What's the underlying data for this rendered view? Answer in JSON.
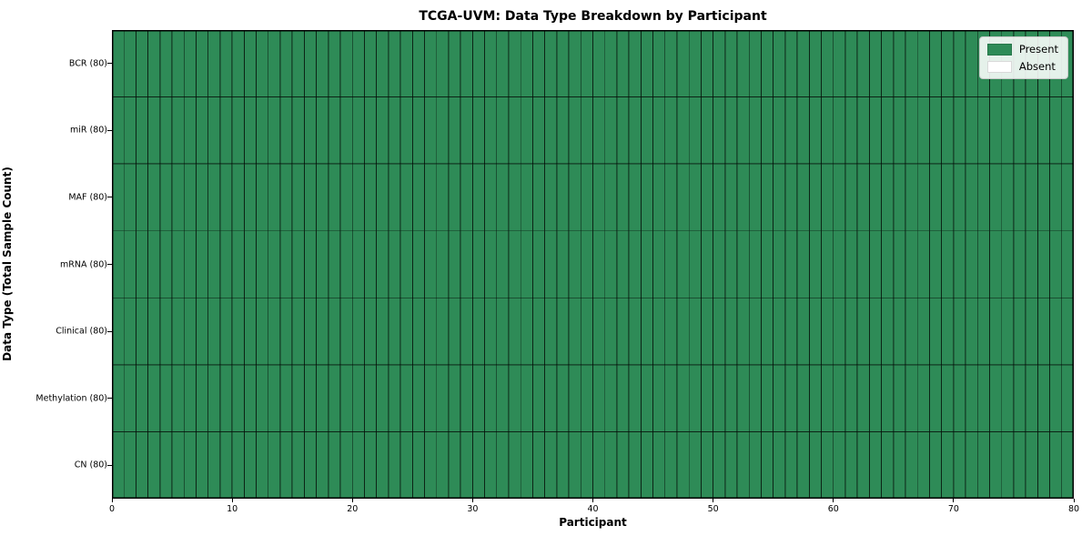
{
  "chart_data": {
    "type": "heatmap",
    "title": "TCGA-UVM: Data Type Breakdown by Participant",
    "xlabel": "Participant",
    "ylabel": "Data Type (Total Sample Count)",
    "xlim": [
      0,
      80
    ],
    "x_ticks": [
      0,
      10,
      20,
      30,
      40,
      50,
      60,
      70,
      80
    ],
    "n_participants": 80,
    "grid": "cell borders visible",
    "legend_position": "upper right",
    "legend": [
      {
        "name": "present",
        "label": "Present",
        "color": "#2e8b57"
      },
      {
        "name": "absent",
        "label": "Absent",
        "color": "#ffffff"
      }
    ],
    "colors": {
      "present": "#2e8b57",
      "absent": "#ffffff",
      "grid_line": "rgba(0,0,0,0.62)",
      "frame": "#000000",
      "background": "#ffffff"
    },
    "rows": [
      {
        "label": "BCR (80)",
        "data_type": "BCR",
        "total_samples": 80,
        "present_count": 80,
        "absent_count": 0,
        "values": "11111111111111111111111111111111111111111111111111111111111111111111111111111111"
      },
      {
        "label": "miR (80)",
        "data_type": "miR",
        "total_samples": 80,
        "present_count": 80,
        "absent_count": 0,
        "values": "11111111111111111111111111111111111111111111111111111111111111111111111111111111"
      },
      {
        "label": "MAF (80)",
        "data_type": "MAF",
        "total_samples": 80,
        "present_count": 80,
        "absent_count": 0,
        "values": "11111111111111111111111111111111111111111111111111111111111111111111111111111111"
      },
      {
        "label": "mRNA (80)",
        "data_type": "mRNA",
        "total_samples": 80,
        "present_count": 80,
        "absent_count": 0,
        "values": "11111111111111111111111111111111111111111111111111111111111111111111111111111111"
      },
      {
        "label": "Clinical (80)",
        "data_type": "Clinical",
        "total_samples": 80,
        "present_count": 80,
        "absent_count": 0,
        "values": "11111111111111111111111111111111111111111111111111111111111111111111111111111111"
      },
      {
        "label": "Methylation (80)",
        "data_type": "Methylation",
        "total_samples": 80,
        "present_count": 80,
        "absent_count": 0,
        "values": "11111111111111111111111111111111111111111111111111111111111111111111111111111111"
      },
      {
        "label": "CN (80)",
        "data_type": "CN",
        "total_samples": 80,
        "present_count": 80,
        "absent_count": 0,
        "values": "11111111111111111111111111111111111111111111111111111111111111111111111111111111"
      }
    ]
  }
}
